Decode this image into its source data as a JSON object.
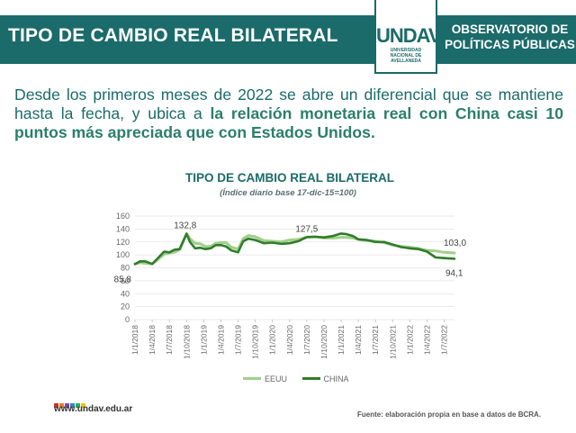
{
  "header": {
    "title": "TIPO DE CAMBIO REAL BILATERAL",
    "logo_mark": "UNDAV",
    "logo_lines": [
      "UNIVERSIDAD",
      "NACIONAL DE",
      "AVELLANEDA"
    ],
    "observatorio": "OBSERVATORIO DE POLÍTICAS PÚBLICAS"
  },
  "intro": {
    "text_plain": "Desde los primeros meses de 2022 se abre un diferencial que se mantiene hasta la fecha, y ubica a ",
    "text_bold": "la relación monetaria real con China casi 10 puntos más apreciada que con Estados Unidos."
  },
  "footer": {
    "website": "www.undav.edu.ar",
    "source": "Fuente: elaboración propia en base a datos de BCRA.",
    "dot_colors": [
      "#c0392b",
      "#e67e22",
      "#8e44ad",
      "#2e86c1",
      "#27ae60",
      "#f1c40f"
    ]
  },
  "colors": {
    "brand": "#1a6b6a",
    "eeuu": "#9fd08a",
    "china": "#2f7d2a"
  },
  "chart_data": {
    "type": "line",
    "title": "TIPO DE CAMBIO REAL BILATERAL",
    "subtitle": "(Índice diario base 17-dic-15=100)",
    "x_labels": [
      "1/1/2018",
      "1/4/2018",
      "1/7/2018",
      "1/10/2018",
      "1/1/2019",
      "1/4/2019",
      "1/7/2019",
      "1/10/2019",
      "1/1/2020",
      "1/4/2020",
      "1/7/2020",
      "1/10/2020",
      "1/1/2021",
      "1/4/2021",
      "1/7/2021",
      "1/10/2021",
      "1/1/2022",
      "1/4/2022",
      "1/7/2022"
    ],
    "x_range": [
      0,
      18.6
    ],
    "ylim": [
      0,
      160
    ],
    "y_ticks": [
      0,
      20,
      40,
      60,
      80,
      100,
      120,
      140,
      160
    ],
    "grid": true,
    "legend": "bottom",
    "series": [
      {
        "name": "EEUU",
        "color": "#9fd08a",
        "x": [
          0,
          0.3,
          0.6,
          1.0,
          1.3,
          1.7,
          2.0,
          2.3,
          2.6,
          3.0,
          3.2,
          3.5,
          3.8,
          4.1,
          4.4,
          4.7,
          5.0,
          5.3,
          5.6,
          6.0,
          6.3,
          6.6,
          7.0,
          7.5,
          8.0,
          8.5,
          9.0,
          9.5,
          10.0,
          10.5,
          11.0,
          11.5,
          12.0,
          12.3,
          12.7,
          13.0,
          13.5,
          14.0,
          14.5,
          15.0,
          15.5,
          16.0,
          16.5,
          17.0,
          17.5,
          18.0,
          18.6
        ],
        "values": [
          85.8,
          88,
          87,
          86,
          92,
          101,
          103,
          104,
          108,
          132.8,
          125,
          118,
          117,
          113,
          113,
          118,
          119,
          119,
          112,
          109,
          125,
          130,
          128,
          122,
          121,
          120,
          123,
          124,
          127.5,
          128,
          126,
          126,
          127,
          127,
          126,
          124,
          122,
          121,
          119,
          115,
          113,
          112,
          110,
          107,
          106,
          104,
          103.0
        ]
      },
      {
        "name": "CHINA",
        "color": "#2f7d2a",
        "x": [
          0,
          0.3,
          0.6,
          1.0,
          1.3,
          1.7,
          2.0,
          2.3,
          2.6,
          3.0,
          3.2,
          3.5,
          3.8,
          4.1,
          4.4,
          4.7,
          5.0,
          5.3,
          5.6,
          6.0,
          6.3,
          6.6,
          7.0,
          7.5,
          8.0,
          8.5,
          9.0,
          9.5,
          10.0,
          10.5,
          11.0,
          11.5,
          12.0,
          12.3,
          12.7,
          13.0,
          13.5,
          14.0,
          14.5,
          15.0,
          15.5,
          16.0,
          16.5,
          17.0,
          17.5,
          18.0,
          18.6
        ],
        "values": [
          85.8,
          90,
          90,
          86,
          94,
          105,
          104,
          108,
          109,
          132.8,
          120,
          110,
          111,
          109,
          110,
          115,
          115,
          113,
          107,
          104,
          121,
          125,
          123,
          118,
          119,
          117,
          118,
          121,
          127.5,
          128,
          127,
          129,
          133,
          132,
          129,
          124,
          123,
          120,
          120,
          116,
          112,
          110,
          109,
          105,
          96,
          95,
          94.1
        ]
      }
    ],
    "annotations": [
      {
        "text": "132,8",
        "x": 3.0,
        "y": 132.8
      },
      {
        "text": "127,5",
        "x": 10.0,
        "y": 127.5
      },
      {
        "text": "85,8",
        "x": 0,
        "y": 85.8
      },
      {
        "text": "103,0",
        "x": 18.6,
        "y": 103.0
      },
      {
        "text": "94,1",
        "x": 18.6,
        "y": 94.1
      }
    ]
  }
}
